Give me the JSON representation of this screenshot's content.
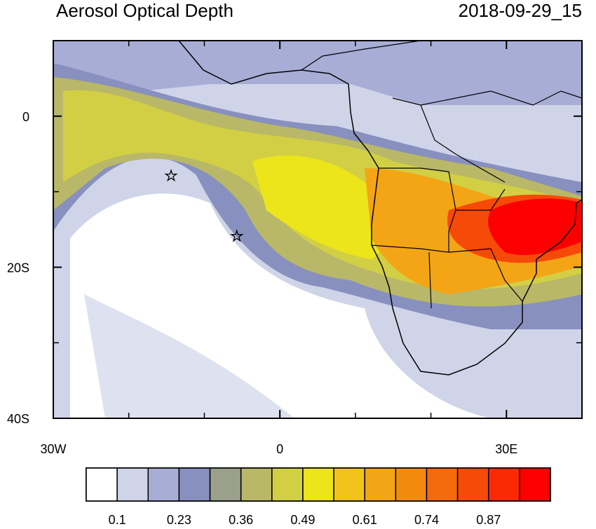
{
  "map": {
    "title": "Aerosol Optical Depth",
    "timestamp": "2018-09-29_15",
    "xlim": [
      -30,
      40
    ],
    "ylim": [
      -40,
      10
    ],
    "xticks": [
      {
        "value": -30,
        "label": "30W"
      },
      0,
      {
        "value": 30,
        "label": "30E"
      }
    ],
    "yticks": [
      0,
      {
        "value": -20,
        "label": "20S"
      },
      {
        "value": -40,
        "label": "40S"
      }
    ],
    "xticks_minor": [
      -20,
      -10,
      10,
      20,
      40
    ],
    "yticks_minor": [
      10,
      -10,
      -30
    ],
    "markers": [
      {
        "lon": -14.4,
        "lat": -7.9
      },
      {
        "lon": -5.7,
        "lat": -15.9
      }
    ],
    "colorbar": {
      "colors": [
        "#ffffff",
        "#d0d4e8",
        "#a8add6",
        "#8890bf",
        "#9aa08c",
        "#b8b868",
        "#d2cf45",
        "#ece51a",
        "#f2c31a",
        "#f3a515",
        "#f38a10",
        "#f46a0c",
        "#f64a08",
        "#f92a04",
        "#fc0000"
      ],
      "labels": [
        0.1,
        0.23,
        0.36,
        0.49,
        0.61,
        0.74,
        0.87
      ]
    }
  }
}
